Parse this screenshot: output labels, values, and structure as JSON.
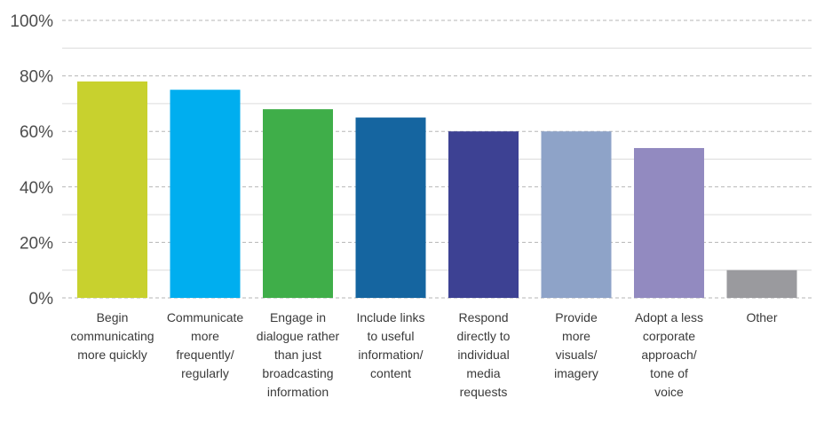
{
  "chart_data": {
    "type": "bar",
    "title": "",
    "xlabel": "",
    "ylabel": "",
    "ylim": [
      0,
      100
    ],
    "y_ticks": [
      "0%",
      "20%",
      "40%",
      "60%",
      "80%",
      "100%"
    ],
    "grid": true,
    "legend": "none",
    "categories": [
      "Begin communicating more quickly",
      "Communicate more frequently/ regularly",
      "Engage in dialogue rather than just broadcasting information",
      "Include links to useful information/ content",
      "Respond directly to individual media requests",
      "Provide more visuals/ imagery",
      "Adopt a less corporate approach/ tone of voice",
      "Other"
    ],
    "category_lines": [
      [
        "Begin",
        "communicating",
        "more quickly"
      ],
      [
        "Communicate",
        "more",
        "frequently/",
        "regularly"
      ],
      [
        "Engage in",
        "dialogue rather",
        "than just",
        "broadcasting",
        "information"
      ],
      [
        "Include links",
        "to useful",
        "information/",
        "content"
      ],
      [
        "Respond",
        "directly to",
        "individual",
        "media",
        "requests"
      ],
      [
        "Provide",
        "more",
        "visuals/",
        "imagery"
      ],
      [
        "Adopt a less",
        "corporate",
        "approach/",
        "tone of",
        "voice"
      ],
      [
        "Other"
      ]
    ],
    "values": [
      78,
      75,
      68,
      65,
      60,
      60,
      54,
      10
    ],
    "colors": [
      "#c8d12e",
      "#00aeef",
      "#3fae49",
      "#1565a0",
      "#3d4193",
      "#8ea3c8",
      "#928ac0",
      "#9a9a9e"
    ]
  }
}
